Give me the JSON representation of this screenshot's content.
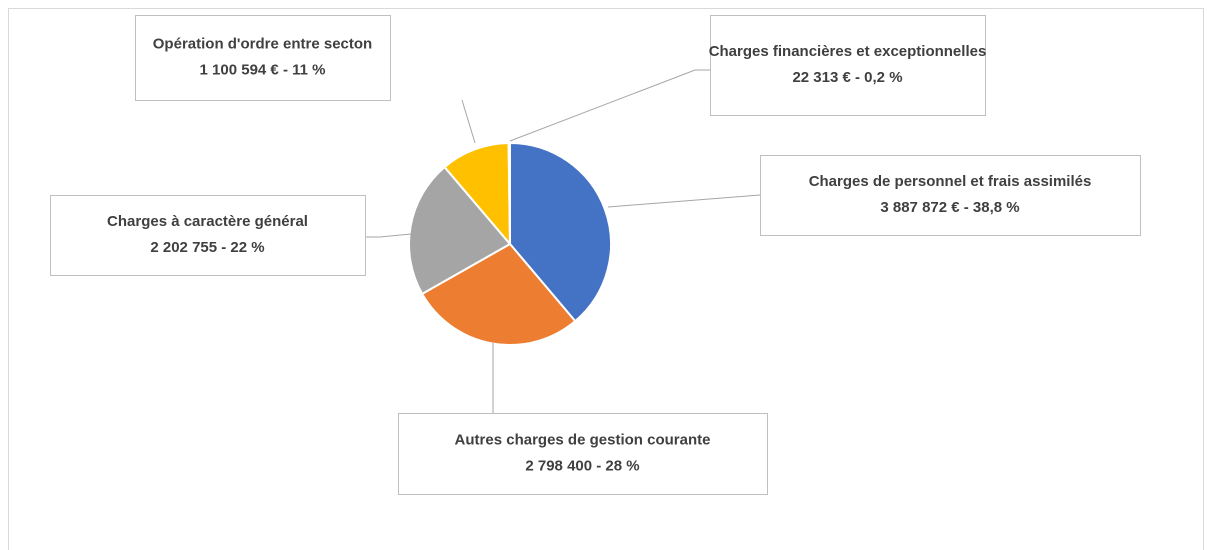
{
  "chart_data": {
    "type": "pie",
    "categories": [
      "Charges de personnel et frais assimilés",
      "Autres charges de gestion courante",
      "Charges à caractère général",
      "Opération d'ordre entre secton",
      "Charges financières et exceptionnelles"
    ],
    "values": [
      3887872,
      2798400,
      2202755,
      1100594,
      22313
    ],
    "value_labels": [
      "3 887 872 €  - 38,8 %",
      "2 798 400 - 28 %",
      "2 202 755 - 22 %",
      "1 100 594 € - 11 %",
      "22 313 € - 0,2 %"
    ],
    "colors": [
      "#4472c4",
      "#ed7d31",
      "#a5a5a5",
      "#ffc000",
      "#5b9bd5"
    ]
  }
}
